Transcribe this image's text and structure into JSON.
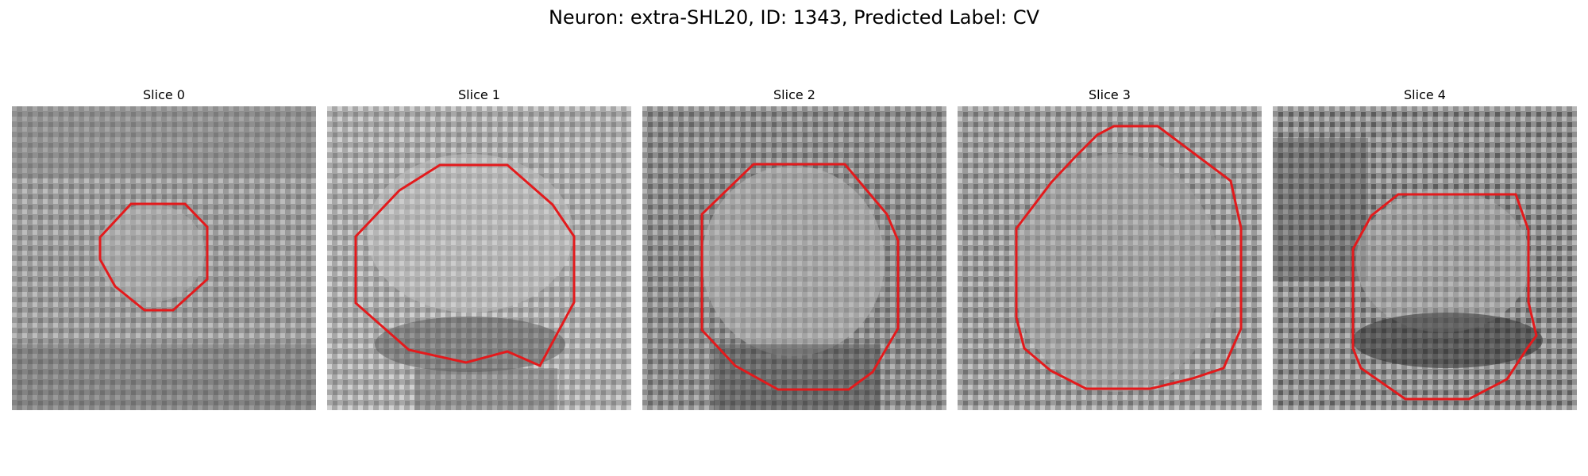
{
  "figure": {
    "title": "Neuron: extra-SHL20, ID: 1343, Predicted Label: CV"
  },
  "colors": {
    "background": "#ffffff",
    "contour": "#e31a1c",
    "image_colormap": "grayscale"
  },
  "panels": [
    {
      "title": "Slice 0"
    },
    {
      "title": "Slice 1"
    },
    {
      "title": "Slice 2"
    },
    {
      "title": "Slice 3"
    },
    {
      "title": "Slice 4"
    }
  ]
}
